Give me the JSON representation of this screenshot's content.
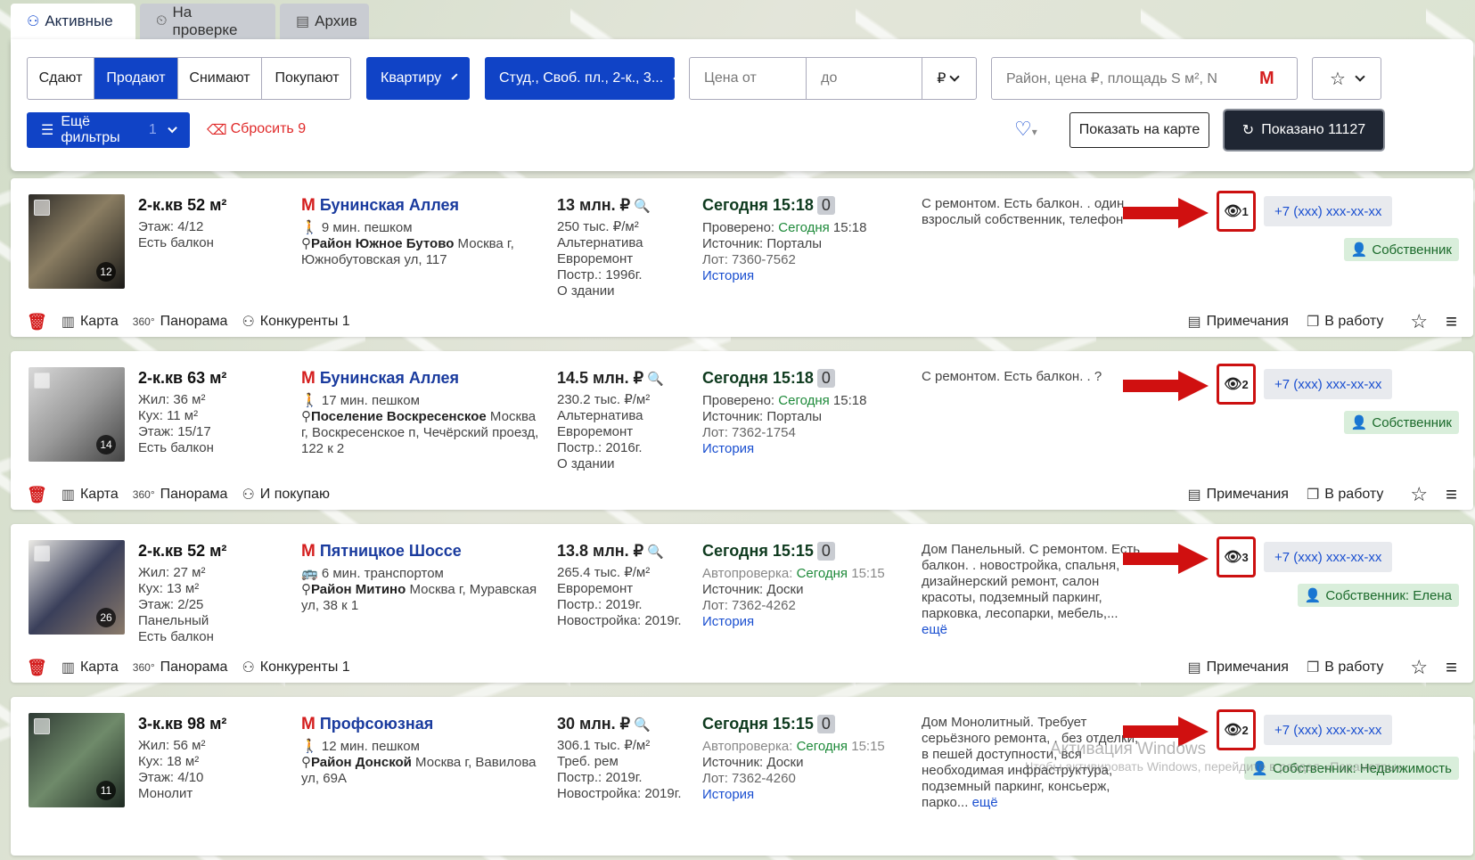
{
  "tabs": [
    {
      "label": "Активные",
      "icon": "users-icon"
    },
    {
      "label": "На проверке",
      "icon": "clock-icon"
    },
    {
      "label": "Архив",
      "icon": "archive-icon"
    }
  ],
  "filters": {
    "deal_types": [
      "Сдают",
      "Продают",
      "Снимают",
      "Покупают"
    ],
    "active_deal": "Продают",
    "property_type": "Квартиру",
    "rooms": "Студ., Своб. пл., 2-к., 3...",
    "price_from_placeholder": "Цена от",
    "price_to_placeholder": "до",
    "currency": "₽",
    "search_placeholder": "Район, цена ₽, площадь S м², N",
    "more_filters": "Ещё фильтры",
    "more_filters_count": "1",
    "reset": "Сбросить 9",
    "show_on_map": "Показать на карте",
    "shown": "Показано 11127"
  },
  "listings": [
    {
      "title": "2-к.кв 52 м²",
      "details": [
        "Этаж: 4/12",
        "Есть балкон"
      ],
      "photo_count": "12",
      "metro": "Бунинская Аллея",
      "transport": "9 мин. пешком",
      "district": "Район Южное Бутово",
      "address": " Москва г, Южнобутовская ул, 117",
      "price": "13 млн. ₽",
      "price_details": [
        "250 тыс. ₽/м²",
        "Альтернатива",
        "Евроремонт",
        "Постр.: 1996г.",
        "О здании"
      ],
      "date": "Сегодня 15:18",
      "date_badge": "0",
      "checked_label": "Проверено: ",
      "checked_time": "Сегодня",
      "checked_rest": " 15:18",
      "source": "Источник: Порталы",
      "lot": "Лот: 7360-7562",
      "history": "История",
      "description": "С ремонтом. Есть балкон. . один взрослый собственник, телефон",
      "more": "",
      "views": "1",
      "phone": "+7 (xxx) xxx-xx-xx",
      "owner": "Собственник",
      "actions": [
        "Карта",
        "Панорама",
        "Конкуренты 1"
      ]
    },
    {
      "title": "2-к.кв 63 м²",
      "details": [
        "Жил: 36 м²",
        "Кух: 11 м²",
        "Этаж: 15/17",
        "Есть балкон"
      ],
      "photo_count": "14",
      "metro": "Бунинская Аллея",
      "transport": "17 мин. пешком",
      "district": "Поселение Воскресенское",
      "address": " Москва г, Воскресенское п, Чечёрский проезд, 122 к 2",
      "price": "14.5 млн. ₽",
      "price_details": [
        "230.2 тыс. ₽/м²",
        "Альтернатива",
        "Евроремонт",
        "Постр.: 2016г.",
        "О здании"
      ],
      "date": "Сегодня 15:18",
      "date_badge": "0",
      "checked_label": "Проверено: ",
      "checked_time": "Сегодня",
      "checked_rest": " 15:18",
      "source": "Источник: Порталы",
      "lot": "Лот: 7362-1754",
      "history": "История",
      "description": "С ремонтом. Есть балкон. . ?",
      "more": "",
      "views": "2",
      "phone": "+7 (xxx) xxx-xx-xx",
      "owner": "Собственник",
      "actions": [
        "Карта",
        "Панорама",
        "И покупаю"
      ]
    },
    {
      "title": "2-к.кв 52 м²",
      "details": [
        "Жил: 27 м²",
        "Кух: 13 м²",
        "Этаж: 2/25",
        "Панельный",
        "Есть балкон"
      ],
      "photo_count": "26",
      "metro": "Пятницкое Шоссе",
      "transport": "6 мин. транспортом",
      "district": "Район Митино",
      "address": " Москва г, Муравская ул, 38 к 1",
      "price": "13.8 млн. ₽",
      "price_details": [
        "265.4 тыс. ₽/м²",
        "Евроремонт",
        "Постр.: 2019г.",
        "Новостройка: 2019г."
      ],
      "date": "Сегодня 15:15",
      "date_badge": "0",
      "checked_label": "Автопроверка: ",
      "checked_time": "Сегодня",
      "checked_rest": " 15:15",
      "source": "Источник: Доски",
      "lot": "Лот: 7362-4262",
      "history": "История",
      "description": "Дом Панельный. С ремонтом. Есть балкон. . новостройка, спальня, дизайнерский ремонт, салон красоты, подземный паркинг, парковка, лесопарки, мебель,...",
      "more": "ещё",
      "views": "3",
      "phone": "+7 (xxx) xxx-xx-xx",
      "owner": "Собственник: Елена",
      "actions": [
        "Карта",
        "Панорама",
        "Конкуренты 1"
      ]
    },
    {
      "title": "3-к.кв 98 м²",
      "details": [
        "Жил: 56 м²",
        "Кух: 18 м²",
        "Этаж: 4/10",
        "Монолит"
      ],
      "photo_count": "11",
      "metro": "Профсоюзная",
      "transport": "12 мин. пешком",
      "district": "Район Донской",
      "address": " Москва г, Вавилова ул, 69А",
      "price": "30 млн. ₽",
      "price_details": [
        "306.1 тыс. ₽/м²",
        "Треб. рем",
        "Постр.: 2019г.",
        "Новостройка: 2019г."
      ],
      "date": "Сегодня 15:15",
      "date_badge": "0",
      "checked_label": "Автопроверка: ",
      "checked_time": "Сегодня",
      "checked_rest": " 15:15",
      "source": "Источник: Доски",
      "lot": "Лот: 7362-4260",
      "history": "История",
      "description": "Дом Монолитный. Требует серьёзного ремонта, . без отделки, в пешей доступности, вся необходимая инфраструктура, подземный паркинг, консьерж, парко...",
      "more": "ещё",
      "views": "2",
      "phone": "+7 (xxx) xxx-xx-xx",
      "owner": "Собственник: Недвижимость",
      "actions": []
    }
  ],
  "common_actions": {
    "notes": "Примечания",
    "to_work": "В работу"
  },
  "watermark": {
    "line1": "Активация Windows",
    "line2": "Чтобы активировать Windows, перейдите в раздел «Параметры»"
  }
}
